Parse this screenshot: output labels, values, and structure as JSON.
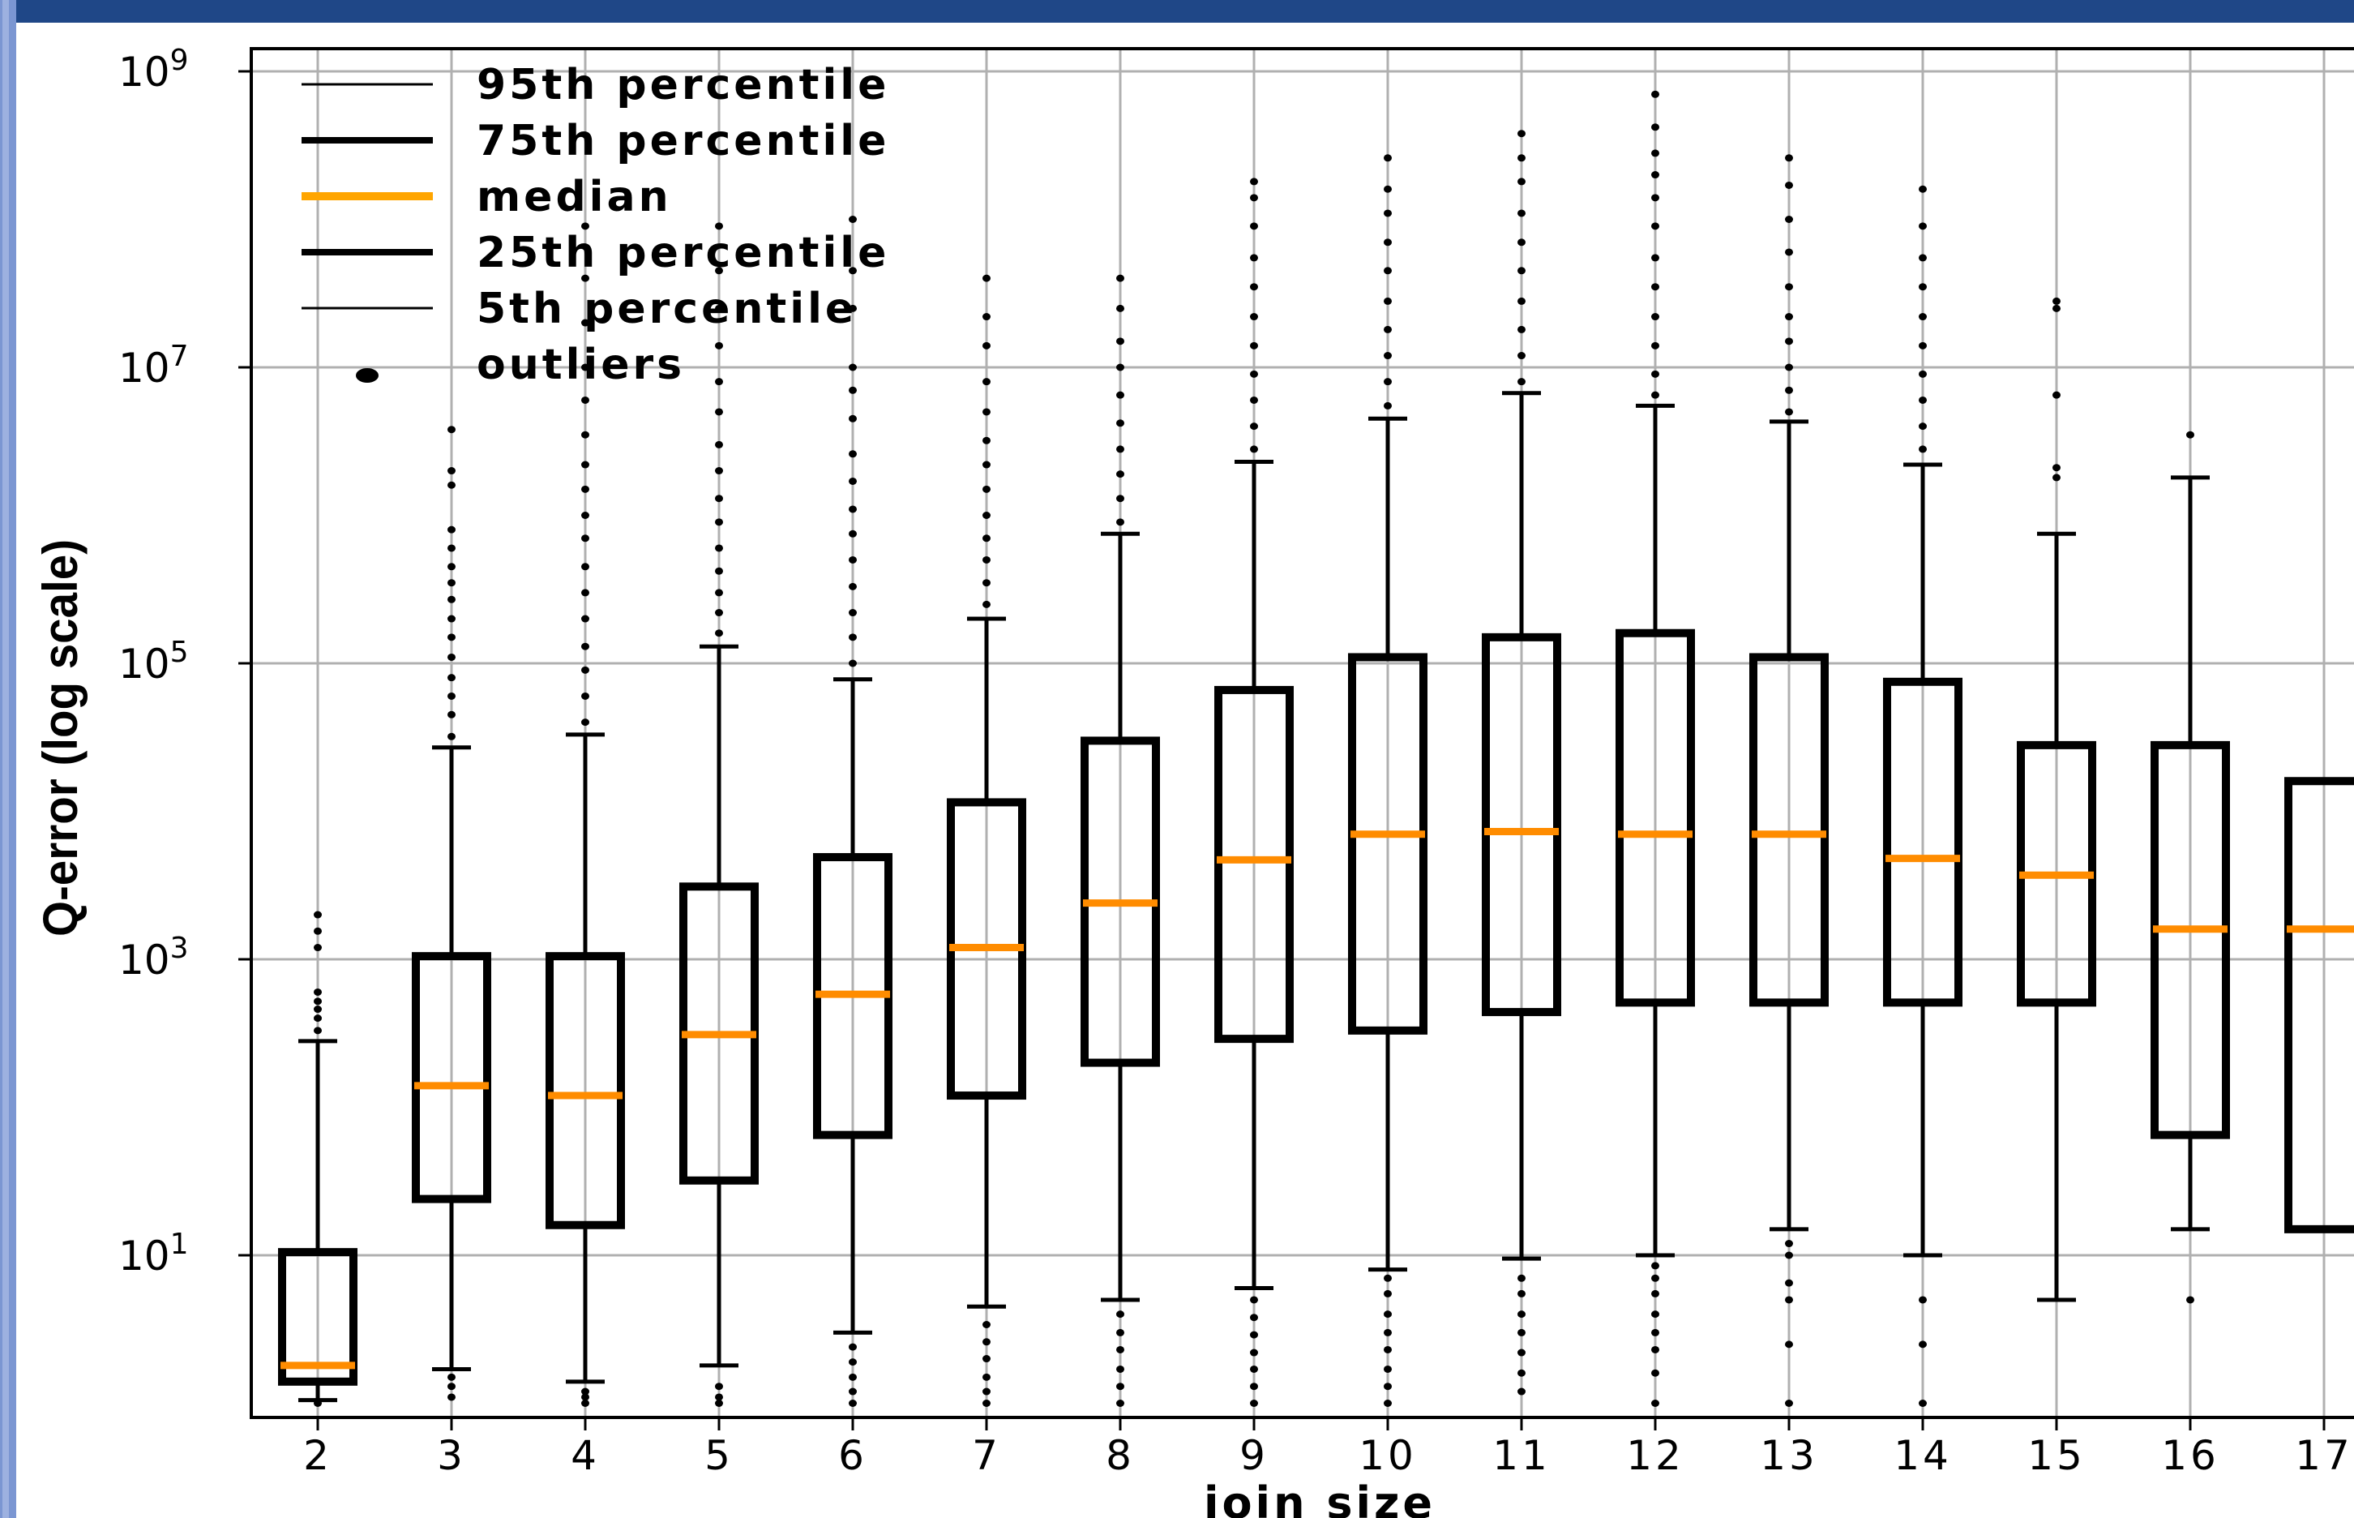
{
  "chart_data": {
    "type": "box",
    "xlabel": "join size",
    "ylabel": "Q-error (log scale)",
    "yscale": "log",
    "ylim": [
      0.75,
      1500000000
    ],
    "yticks": [
      {
        "value": 10,
        "base": "10",
        "exp": "1"
      },
      {
        "value": 1000,
        "base": "10",
        "exp": "3"
      },
      {
        "value": 100000,
        "base": "10",
        "exp": "5"
      },
      {
        "value": 10000000,
        "base": "10",
        "exp": "7"
      },
      {
        "value": 1000000000,
        "base": "10",
        "exp": "9"
      }
    ],
    "grid": true,
    "legend_position": "top-left",
    "legend": [
      {
        "label": "95th percentile",
        "style": "thin-line"
      },
      {
        "label": "75th percentile",
        "style": "thick-line"
      },
      {
        "label": "median",
        "style": "orange-line"
      },
      {
        "label": "25th percentile",
        "style": "thick-line"
      },
      {
        "label": "5th percentile",
        "style": "thin-line"
      },
      {
        "label": "outliers",
        "style": "dot"
      }
    ],
    "colors": {
      "box": "#000000",
      "median": "#ff8c00",
      "grid": "#b0b0b0",
      "legend_median": "#ffa500"
    },
    "categories": [
      "2",
      "3",
      "4",
      "5",
      "6",
      "7",
      "8",
      "9",
      "10",
      "11",
      "12",
      "13",
      "14",
      "15",
      "16",
      "17"
    ],
    "boxes": [
      {
        "x": "2",
        "p5": 1.05,
        "p25": 1.4,
        "median": 1.8,
        "p75": 10.5,
        "p95": 280,
        "outliers_high": [
          330,
          400,
          460,
          520,
          600,
          1200,
          1550,
          2000
        ],
        "outliers_low": [
          1.0
        ]
      },
      {
        "x": "3",
        "p5": 1.7,
        "p25": 24,
        "median": 140,
        "p75": 1050,
        "p95": 27000,
        "outliers_high": [
          32000,
          45000,
          60000,
          80000,
          110000,
          150000,
          200000,
          270000,
          350000,
          450000,
          600000,
          800000,
          1600000,
          2000000,
          3800000
        ],
        "outliers_low": [
          1.1,
          1.3,
          1.5
        ]
      },
      {
        "x": "4",
        "p5": 1.4,
        "p25": 16,
        "median": 120,
        "p75": 1050,
        "p95": 33000,
        "outliers_high": [
          40000,
          60000,
          90000,
          130000,
          200000,
          300000,
          450000,
          700000,
          1000000,
          1500000,
          2200000,
          3500000,
          6000000,
          10000000,
          20000000,
          40000000,
          90000000
        ],
        "outliers_low": [
          1.0,
          1.1,
          1.2
        ]
      },
      {
        "x": "5",
        "p5": 1.8,
        "p25": 32,
        "median": 310,
        "p75": 3100,
        "p95": 130000,
        "outliers_high": [
          160000,
          220000,
          300000,
          420000,
          600000,
          900000,
          1300000,
          2000000,
          3000000,
          5000000,
          8000000,
          14000000,
          25000000,
          45000000,
          90000000
        ],
        "outliers_low": [
          1.0,
          1.1,
          1.3
        ]
      },
      {
        "x": "6",
        "p5": 3.0,
        "p25": 65,
        "median": 580,
        "p75": 4900,
        "p95": 78000,
        "outliers_high": [
          100000,
          150000,
          220000,
          330000,
          500000,
          750000,
          1100000,
          1700000,
          2600000,
          4500000,
          7000000,
          10000000,
          25000000,
          45000000,
          100000000
        ],
        "outliers_low": [
          1.0,
          1.2,
          1.5,
          1.9,
          2.4
        ]
      },
      {
        "x": "7",
        "p5": 4.5,
        "p25": 120,
        "median": 1200,
        "p75": 11500,
        "p95": 200000,
        "outliers_high": [
          250000,
          350000,
          500000,
          700000,
          1000000,
          1500000,
          2200000,
          3200000,
          5000000,
          8000000,
          14000000,
          22000000,
          40000000
        ],
        "outliers_low": [
          1.0,
          1.2,
          1.5,
          2.0,
          2.6,
          3.4
        ]
      },
      {
        "x": "8",
        "p5": 5.0,
        "p25": 200,
        "median": 2400,
        "p75": 30000,
        "p95": 750000,
        "outliers_high": [
          900000,
          1300000,
          1900000,
          2800000,
          4200000,
          6500000,
          10000000,
          15000000,
          25000000,
          40000000
        ],
        "outliers_low": [
          1.0,
          1.3,
          1.7,
          2.3,
          3.0,
          4.0
        ]
      },
      {
        "x": "9",
        "p5": 6.0,
        "p25": 290,
        "median": 4700,
        "p75": 66000,
        "p95": 2300000,
        "outliers_high": [
          2800000,
          4000000,
          6000000,
          9000000,
          14000000,
          22000000,
          35000000,
          55000000,
          90000000,
          140000000,
          180000000
        ],
        "outliers_low": [
          1.0,
          1.3,
          1.7,
          2.2,
          2.9,
          3.8,
          5.0
        ]
      },
      {
        "x": "10",
        "p5": 8.0,
        "p25": 330,
        "median": 7000,
        "p75": 110000,
        "p95": 4500000,
        "outliers_high": [
          5500000,
          8000000,
          12000000,
          18000000,
          28000000,
          45000000,
          70000000,
          110000000,
          160000000,
          260000000
        ],
        "outliers_low": [
          1.0,
          1.3,
          1.7,
          2.3,
          3.0,
          4.0,
          5.5,
          7.0
        ]
      },
      {
        "x": "11",
        "p5": 9.5,
        "p25": 440,
        "median": 7300,
        "p75": 150000,
        "p95": 6700000,
        "outliers_high": [
          8000000,
          12000000,
          18000000,
          28000000,
          45000000,
          70000000,
          110000000,
          180000000,
          260000000,
          380000000
        ],
        "outliers_low": [
          1.2,
          1.6,
          2.2,
          3.0,
          4.0,
          5.5,
          7.0
        ]
      },
      {
        "x": "12",
        "p5": 10.0,
        "p25": 510,
        "median": 7000,
        "p75": 160000,
        "p95": 5500000,
        "outliers_high": [
          6500000,
          9000000,
          14000000,
          22000000,
          35000000,
          55000000,
          90000000,
          140000000,
          200000000,
          280000000,
          420000000,
          700000000
        ],
        "outliers_low": [
          1.0,
          1.6,
          2.3,
          3.0,
          4.0,
          5.5,
          7.0,
          8.5
        ]
      },
      {
        "x": "13",
        "p5": 15.0,
        "p25": 510,
        "median": 7000,
        "p75": 110000,
        "p95": 4300000,
        "outliers_high": [
          5000000,
          7000000,
          10000000,
          15000000,
          22000000,
          35000000,
          60000000,
          100000000,
          170000000,
          260000000
        ],
        "outliers_low": [
          1.0,
          2.5,
          5.0,
          6.5,
          10.0,
          12.0
        ]
      },
      {
        "x": "14",
        "p5": 10.0,
        "p25": 510,
        "median": 4800,
        "p75": 75000,
        "p95": 2200000,
        "outliers_high": [
          2800000,
          4000000,
          6000000,
          9000000,
          14000000,
          22000000,
          35000000,
          55000000,
          90000000,
          160000000
        ],
        "outliers_low": [
          1.0,
          2.5,
          5.0
        ]
      },
      {
        "x": "15",
        "p5": 5.0,
        "p25": 510,
        "median": 3700,
        "p75": 28000,
        "p95": 750000,
        "outliers_high": [
          1800000,
          2100000,
          6500000,
          25000000,
          28000000
        ],
        "outliers_low": []
      },
      {
        "x": "16",
        "p5": 15.0,
        "p25": 65,
        "median": 1600,
        "p75": 28000,
        "p95": 1800000,
        "outliers_high": [
          3500000
        ],
        "outliers_low": [
          5.0
        ]
      },
      {
        "x": "17",
        "p5": null,
        "p25": 15,
        "median": 1600,
        "p75": 16000,
        "p95": null,
        "outliers_high": [],
        "outliers_low": []
      }
    ]
  }
}
